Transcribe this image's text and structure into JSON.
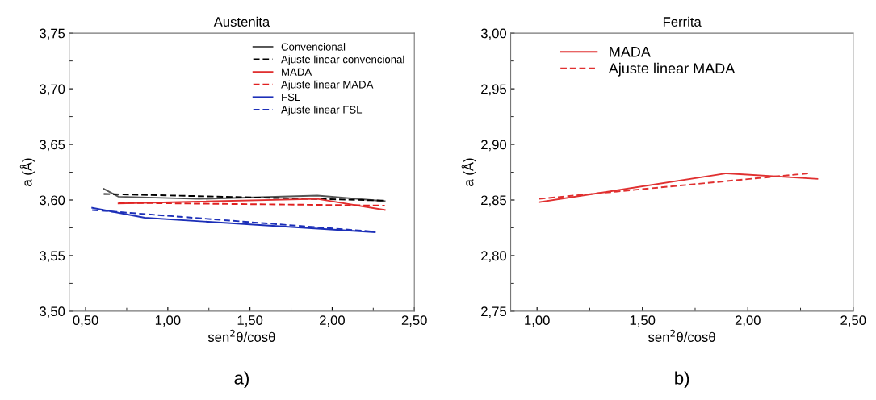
{
  "chart_data": [
    {
      "type": "line",
      "title": "Austenita",
      "xlabel": "sen$^{2}$θ/cosθ",
      "ylabel": "a (Å)",
      "xlim": [
        0.4,
        2.5
      ],
      "xticks": [
        {
          "value": 0.5,
          "label": "0,50"
        },
        {
          "value": 1.0,
          "label": "1,00"
        },
        {
          "value": 1.5,
          "label": "1,50"
        },
        {
          "value": 2.0,
          "label": "2,00"
        },
        {
          "value": 2.5,
          "label": "2,50"
        }
      ],
      "ylim": [
        3.5,
        3.75
      ],
      "yticks": [
        {
          "value": 3.5,
          "label": "3,50"
        },
        {
          "value": 3.55,
          "label": "3,55"
        },
        {
          "value": 3.6,
          "label": "3,60"
        },
        {
          "value": 3.65,
          "label": "3,65"
        },
        {
          "value": 3.7,
          "label": "3,70"
        },
        {
          "value": 3.75,
          "label": "3,75"
        }
      ],
      "grid": false,
      "legend": "top right",
      "annotations": [
        "a)"
      ],
      "series": [
        {
          "name": "Convencional",
          "color": "#555555",
          "line_style": "solid",
          "x": [
            0.61,
            0.7,
            1.19,
            1.91,
            2.32
          ],
          "values": [
            3.61,
            3.603,
            3.601,
            3.604,
            3.599
          ]
        },
        {
          "name": "Ajuste linear convencional",
          "color": "#000000",
          "line_style": "dashed",
          "x": [
            0.61,
            2.32
          ],
          "values": [
            3.6055,
            3.5995
          ]
        },
        {
          "name": "MADA",
          "color": "#e03030",
          "line_style": "solid",
          "x": [
            0.7,
            1.91,
            2.32
          ],
          "values": [
            3.597,
            3.601,
            3.591
          ]
        },
        {
          "name": "Ajuste linear MADA",
          "color": "#e02020",
          "line_style": "dashed",
          "x": [
            0.7,
            2.32
          ],
          "values": [
            3.5975,
            3.595
          ]
        },
        {
          "name": "FSL",
          "color": "#1c2fb8",
          "line_style": "solid",
          "x": [
            0.54,
            0.86,
            2.26
          ],
          "values": [
            3.593,
            3.584,
            3.571
          ]
        },
        {
          "name": "Ajuste linear FSL",
          "color": "#1c2fb8",
          "line_style": "dashed",
          "x": [
            0.54,
            2.26
          ],
          "values": [
            3.591,
            3.5715
          ]
        }
      ]
    },
    {
      "type": "line",
      "title": "Ferrita",
      "xlabel": "sen$^{2}$θ/cosθ",
      "ylabel": "a (Å)",
      "xlim": [
        0.875,
        2.5
      ],
      "xticks": [
        {
          "value": 1.0,
          "label": "1,00"
        },
        {
          "value": 1.5,
          "label": "1,50"
        },
        {
          "value": 2.0,
          "label": "2,00"
        },
        {
          "value": 2.5,
          "label": "2,50"
        }
      ],
      "ylim": [
        2.75,
        3.0
      ],
      "yticks": [
        {
          "value": 2.75,
          "label": "2,75"
        },
        {
          "value": 2.8,
          "label": "2,80"
        },
        {
          "value": 2.85,
          "label": "2,85"
        },
        {
          "value": 2.9,
          "label": "2,90"
        },
        {
          "value": 2.95,
          "label": "2,95"
        },
        {
          "value": 3.0,
          "label": "3,00"
        }
      ],
      "grid": false,
      "legend": "top",
      "annotations": [
        "b)"
      ],
      "series": [
        {
          "name": "MADA",
          "color": "#e03030",
          "line_style": "solid",
          "x": [
            1.01,
            1.9,
            2.33
          ],
          "values": [
            2.848,
            2.874,
            2.869
          ]
        },
        {
          "name": "Ajuste linear MADA",
          "color": "#e03030",
          "line_style": "dashed",
          "x": [
            1.01,
            2.29
          ],
          "values": [
            2.851,
            2.874
          ]
        }
      ]
    }
  ]
}
